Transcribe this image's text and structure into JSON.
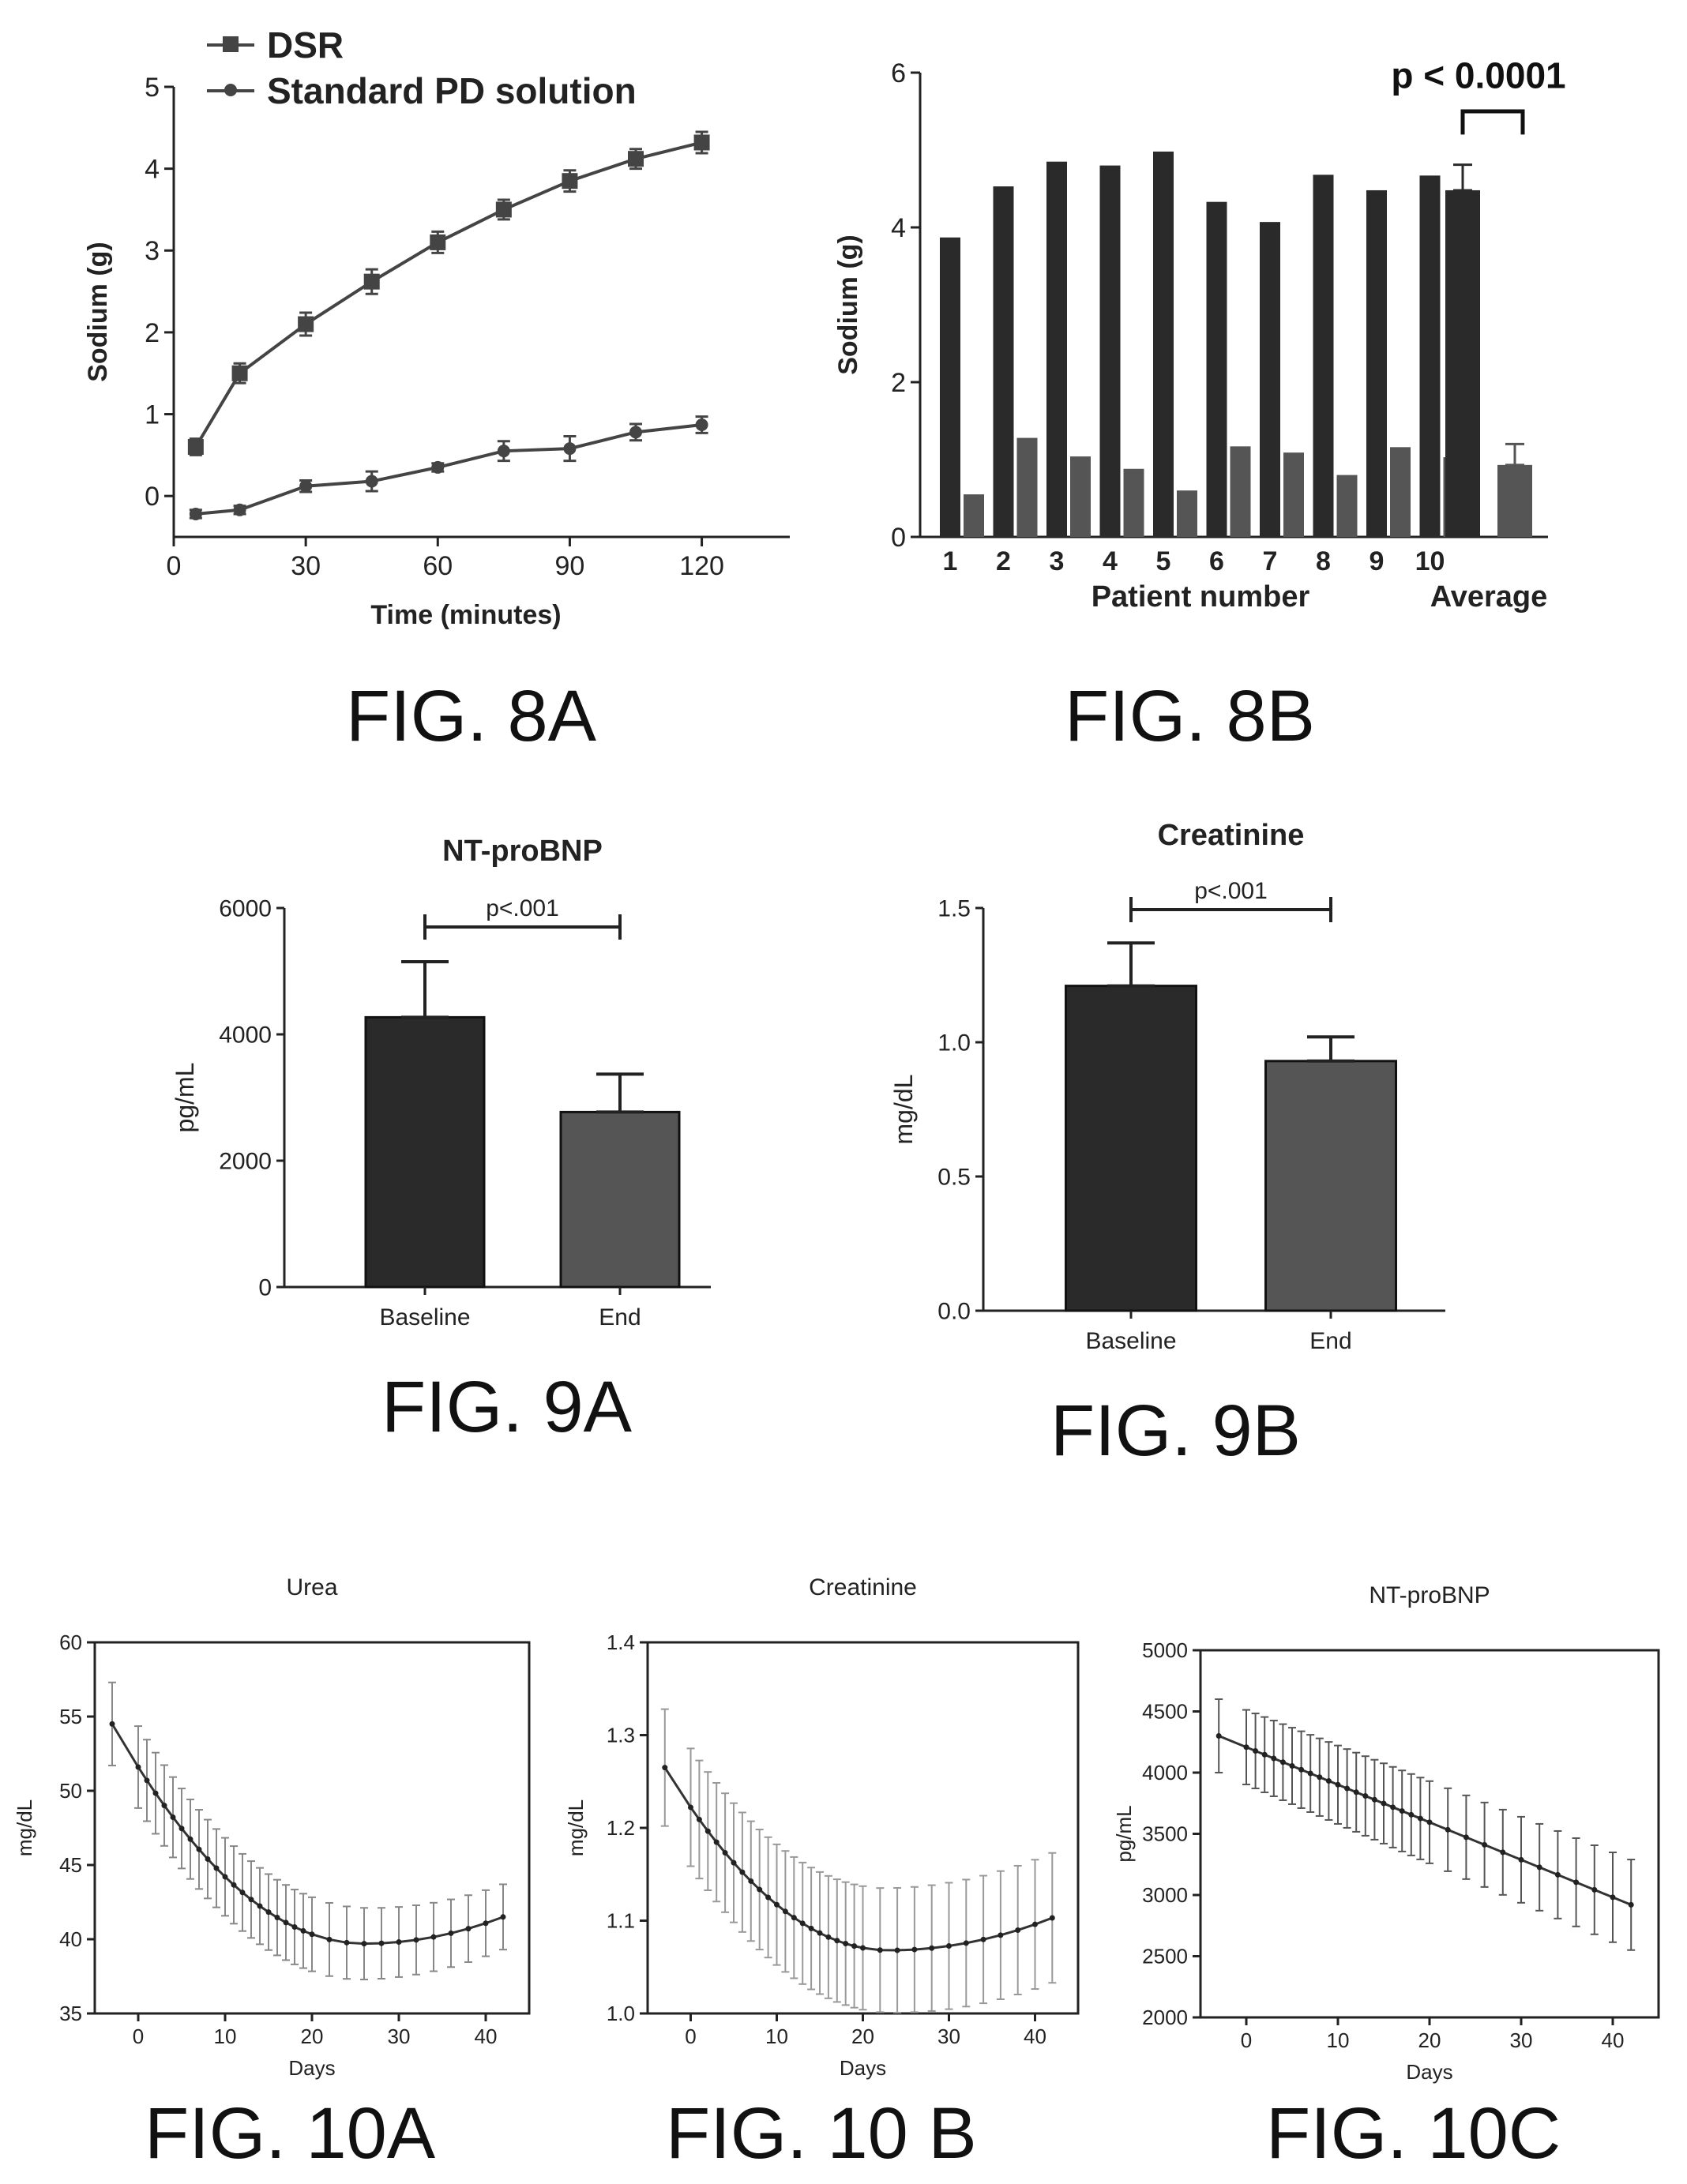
{
  "figures": {
    "fig8a": "FIG. 8A",
    "fig8b": "FIG. 8B",
    "fig9a": "FIG. 9A",
    "fig9b": "FIG. 9B",
    "fig10a": "FIG. 10A",
    "fig10b": "FIG. 10 B",
    "fig10c": "FIG. 10C"
  },
  "colors": {
    "bar_dark": "#2a2a2a",
    "bar_medium": "#555555",
    "line": "#444444",
    "axis": "#222222",
    "errbar_light": "#aaaaaa"
  },
  "chart_data": [
    {
      "id": "fig8a",
      "type": "line",
      "title": "",
      "xlabel": "Time (minutes)",
      "ylabel": "Sodium (g)",
      "xlim": [
        0,
        140
      ],
      "ylim": [
        -0.5,
        5
      ],
      "xticks": [
        0,
        30,
        60,
        90,
        120
      ],
      "yticks": [
        0,
        1,
        2,
        3,
        4,
        5
      ],
      "legend_position": "top-left",
      "series": [
        {
          "name": "DSR",
          "marker": "square",
          "x": [
            5,
            15,
            30,
            45,
            60,
            75,
            90,
            105,
            120
          ],
          "y": [
            0.6,
            1.5,
            2.1,
            2.62,
            3.1,
            3.5,
            3.85,
            4.12,
            4.32
          ],
          "err": [
            0.1,
            0.12,
            0.14,
            0.15,
            0.13,
            0.12,
            0.13,
            0.12,
            0.13
          ]
        },
        {
          "name": "Standard PD solution",
          "marker": "circle",
          "x": [
            5,
            15,
            30,
            45,
            60,
            75,
            90,
            105,
            120
          ],
          "y": [
            -0.22,
            -0.17,
            0.12,
            0.18,
            0.35,
            0.55,
            0.58,
            0.78,
            0.87
          ],
          "err": [
            0.05,
            0.05,
            0.07,
            0.12,
            0.05,
            0.12,
            0.15,
            0.1,
            0.1
          ]
        }
      ]
    },
    {
      "id": "fig8b",
      "type": "bar",
      "title": "",
      "xlabel": "Patient number",
      "ylabel": "Sodium (g)",
      "ylim": [
        0,
        6
      ],
      "yticks": [
        0,
        2,
        4,
        6
      ],
      "categories": [
        "1",
        "2",
        "3",
        "4",
        "5",
        "6",
        "7",
        "8",
        "9",
        "10"
      ],
      "dsr": [
        3.87,
        4.53,
        4.85,
        4.8,
        4.98,
        4.33,
        4.07,
        4.68,
        4.48,
        4.67
      ],
      "standard": [
        0.55,
        1.28,
        1.04,
        0.88,
        0.6,
        1.17,
        1.09,
        0.8,
        1.16,
        1.03
      ],
      "average_label": "Average",
      "average": {
        "dsr": 4.48,
        "dsr_err": 0.33,
        "standard": 0.93,
        "standard_err": 0.27
      },
      "annotation": "p < 0.0001"
    },
    {
      "id": "fig9a",
      "type": "bar",
      "title": "NT-proBNP",
      "xlabel": "",
      "ylabel": "pg/mL",
      "ylim": [
        0,
        6000
      ],
      "yticks": [
        0,
        2000,
        4000,
        6000
      ],
      "categories": [
        "Baseline",
        "End"
      ],
      "values": [
        4270,
        2770
      ],
      "err": [
        880,
        600
      ],
      "annotation": "p<.001"
    },
    {
      "id": "fig9b",
      "type": "bar",
      "title": "Creatinine",
      "xlabel": "",
      "ylabel": "mg/dL",
      "ylim": [
        0,
        1.5
      ],
      "yticks": [
        "0.0",
        "0.5",
        "1.0",
        "1.5"
      ],
      "categories": [
        "Baseline",
        "End"
      ],
      "values": [
        1.21,
        0.93
      ],
      "err": [
        0.16,
        0.09
      ],
      "annotation": "p<.001"
    },
    {
      "id": "fig10a",
      "type": "line",
      "title": "Urea",
      "xlabel": "Days",
      "ylabel": "mg/dL",
      "xlim": [
        -5,
        45
      ],
      "ylim": [
        35,
        60
      ],
      "xticks": [
        0,
        10,
        20,
        30,
        40
      ],
      "yticks": [
        35,
        40,
        45,
        50,
        55,
        60
      ],
      "curve": {
        "start_day": -3,
        "end_day": 42,
        "start_y": 54.5,
        "min_day": 26,
        "min_y": 39.7,
        "end_y": 41.5
      },
      "err": {
        "start": 2.8,
        "later": 2.2
      }
    },
    {
      "id": "fig10b",
      "type": "line",
      "title": "Creatinine",
      "xlabel": "Days",
      "ylabel": "mg/dL",
      "xlim": [
        -5,
        45
      ],
      "ylim": [
        1.0,
        1.4
      ],
      "xticks": [
        0,
        10,
        20,
        30,
        40
      ],
      "yticks": [
        "1.0",
        "1.1",
        "1.2",
        "1.3",
        "1.4"
      ],
      "curve": {
        "start_day": -3,
        "end_day": 42,
        "start_y": 1.265,
        "min_day": 23,
        "min_y": 1.068,
        "end_y": 1.103
      },
      "err": {
        "start": 0.063,
        "later": 0.07
      }
    },
    {
      "id": "fig10c",
      "type": "line",
      "title": "NT-proBNP",
      "xlabel": "Days",
      "ylabel": "pg/mL",
      "xlim": [
        -5,
        45
      ],
      "ylim": [
        2000,
        5000
      ],
      "xticks": [
        0,
        10,
        20,
        30,
        40
      ],
      "yticks": [
        2000,
        2500,
        3000,
        3500,
        4000,
        4500,
        5000
      ],
      "linear": {
        "start_day": -3,
        "end_day": 42,
        "start_y": 4300,
        "end_y": 2920
      },
      "err": {
        "start": 300,
        "later": 370
      }
    }
  ]
}
